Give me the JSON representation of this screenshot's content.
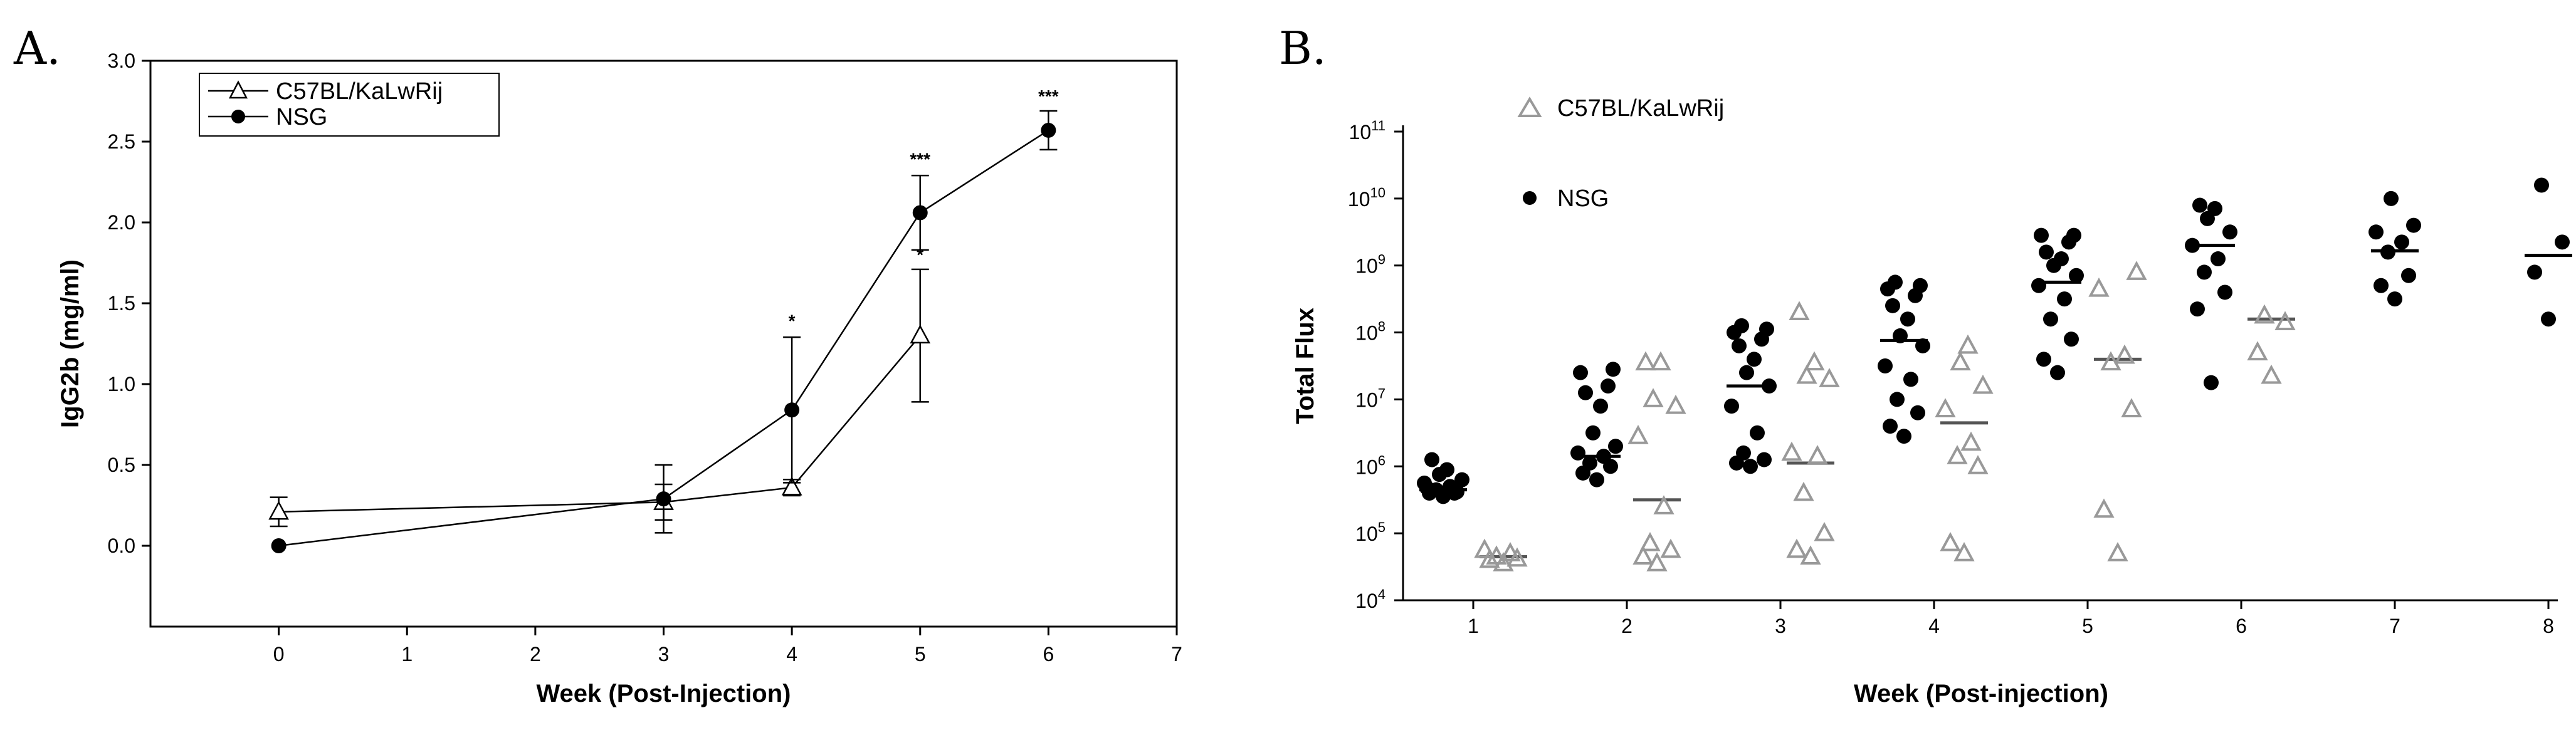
{
  "chart_data": [
    {
      "panel": "A.",
      "type": "line",
      "title": "",
      "xlabel": "Week (Post-Injection)",
      "ylabel": "IgG2b (mg/ml)",
      "xlim": [
        -1,
        7
      ],
      "ylim": [
        -0.5,
        3.0
      ],
      "xticks": [
        "0",
        "1",
        "2",
        "3",
        "4",
        "5",
        "6",
        "7"
      ],
      "yticks": [
        "0.0",
        "0.5",
        "1.0",
        "1.5",
        "2.0",
        "2.5",
        "3.0"
      ],
      "legend": {
        "position": "top-left",
        "entries": [
          "C57BL/KaLwRij",
          "NSG"
        ]
      },
      "series": [
        {
          "name": "C57BL/KaLwRij",
          "marker": "open-triangle",
          "x": [
            0,
            3,
            4,
            5
          ],
          "y": [
            0.21,
            0.27,
            0.36,
            1.3
          ],
          "err": [
            0.09,
            0.11,
            0.05,
            0.41
          ]
        },
        {
          "name": "NSG",
          "marker": "filled-circle",
          "x": [
            0,
            3,
            4,
            5,
            6
          ],
          "y": [
            0.0,
            0.29,
            0.84,
            2.06,
            2.57
          ],
          "err": [
            0.0,
            0.21,
            0.45,
            0.23,
            0.12
          ]
        }
      ],
      "annotations": [
        {
          "x": 4,
          "y": 1.3,
          "text": "*"
        },
        {
          "x": 5,
          "y": 2.3,
          "text": "***"
        },
        {
          "x": 5,
          "y": 1.71,
          "text": "*"
        },
        {
          "x": 6,
          "y": 2.69,
          "text": "***"
        }
      ]
    },
    {
      "panel": "B.",
      "type": "scatter",
      "title": "",
      "xlabel": "Week (Post-injection)",
      "ylabel": "Total Flux",
      "xscale": "linear",
      "yscale": "log",
      "ylim_exp": [
        4,
        11
      ],
      "ytick_base": "10",
      "ytick_exps": [
        "4",
        "5",
        "6",
        "7",
        "8",
        "9",
        "10",
        "11"
      ],
      "xticks": [
        "1",
        "2",
        "3",
        "4",
        "5",
        "6",
        "7",
        "8"
      ],
      "legend": {
        "position": "top-left",
        "entries": [
          "C57BL/KaLwRij",
          "NSG"
        ]
      },
      "series": [
        {
          "name": "NSG",
          "marker": "filled-circle",
          "color": "#000000",
          "groups": [
            {
              "week": 1,
              "median_log": 5.65,
              "points_log": [
                5.55,
                5.6,
                5.62,
                5.65,
                5.7,
                5.75,
                5.8,
                5.88,
                5.95,
                6.1,
                5.6,
                5.68
              ]
            },
            {
              "week": 2,
              "median_log": 6.15,
              "points_log": [
                5.8,
                5.9,
                6.0,
                6.05,
                6.15,
                6.2,
                6.3,
                6.5,
                6.9,
                7.1,
                7.2,
                7.4,
                7.45
              ]
            },
            {
              "week": 3,
              "median_log": 7.2,
              "points_log": [
                6.0,
                6.05,
                6.1,
                6.2,
                6.5,
                6.9,
                7.2,
                7.4,
                7.6,
                7.8,
                7.9,
                8.0,
                8.05,
                8.1
              ]
            },
            {
              "week": 4,
              "median_log": 7.88,
              "points_log": [
                6.45,
                6.6,
                6.8,
                7.0,
                7.3,
                7.5,
                7.8,
                7.95,
                8.2,
                8.4,
                8.55,
                8.65,
                8.7,
                8.75
              ]
            },
            {
              "week": 5,
              "median_log": 8.75,
              "points_log": [
                7.4,
                7.6,
                7.9,
                8.2,
                8.5,
                8.7,
                8.85,
                9.0,
                9.1,
                9.2,
                9.35,
                9.45,
                9.45
              ]
            },
            {
              "week": 6,
              "median_log": 9.3,
              "points_log": [
                7.25,
                8.35,
                8.6,
                8.9,
                9.1,
                9.3,
                9.5,
                9.7,
                9.85,
                9.9
              ]
            },
            {
              "week": 7,
              "median_log": 9.22,
              "points_log": [
                8.5,
                8.7,
                8.85,
                9.2,
                9.35,
                9.5,
                9.6,
                10.0
              ]
            },
            {
              "week": 8,
              "median_log": 9.15,
              "points_log": [
                8.2,
                8.9,
                9.35,
                10.2
              ]
            }
          ]
        },
        {
          "name": "C57BL/KaLwRij",
          "marker": "open-triangle",
          "color": "#999999",
          "groups": [
            {
              "week": 1,
              "median_log": 4.65,
              "points_log": [
                4.55,
                4.6,
                4.62,
                4.65,
                4.7,
                4.75
              ]
            },
            {
              "week": 2,
              "median_log": 5.5,
              "points_log": [
                4.55,
                4.65,
                4.75,
                4.85,
                5.4,
                6.45,
                6.9,
                7.0,
                7.55,
                7.55
              ]
            },
            {
              "week": 3,
              "median_log": 6.05,
              "points_log": [
                4.65,
                4.75,
                5.0,
                5.6,
                6.15,
                6.2,
                7.3,
                7.35,
                7.55,
                8.3
              ]
            },
            {
              "week": 4,
              "median_log": 6.65,
              "points_log": [
                4.7,
                4.85,
                6.0,
                6.15,
                6.35,
                6.85,
                7.2,
                7.55,
                7.8
              ]
            },
            {
              "week": 5,
              "median_log": 7.6,
              "points_log": [
                4.7,
                5.35,
                6.85,
                7.55,
                7.65,
                8.65,
                8.9
              ]
            },
            {
              "week": 6,
              "median_log": 8.2,
              "points_log": [
                7.35,
                7.7,
                8.15,
                8.25
              ]
            }
          ]
        }
      ]
    }
  ]
}
